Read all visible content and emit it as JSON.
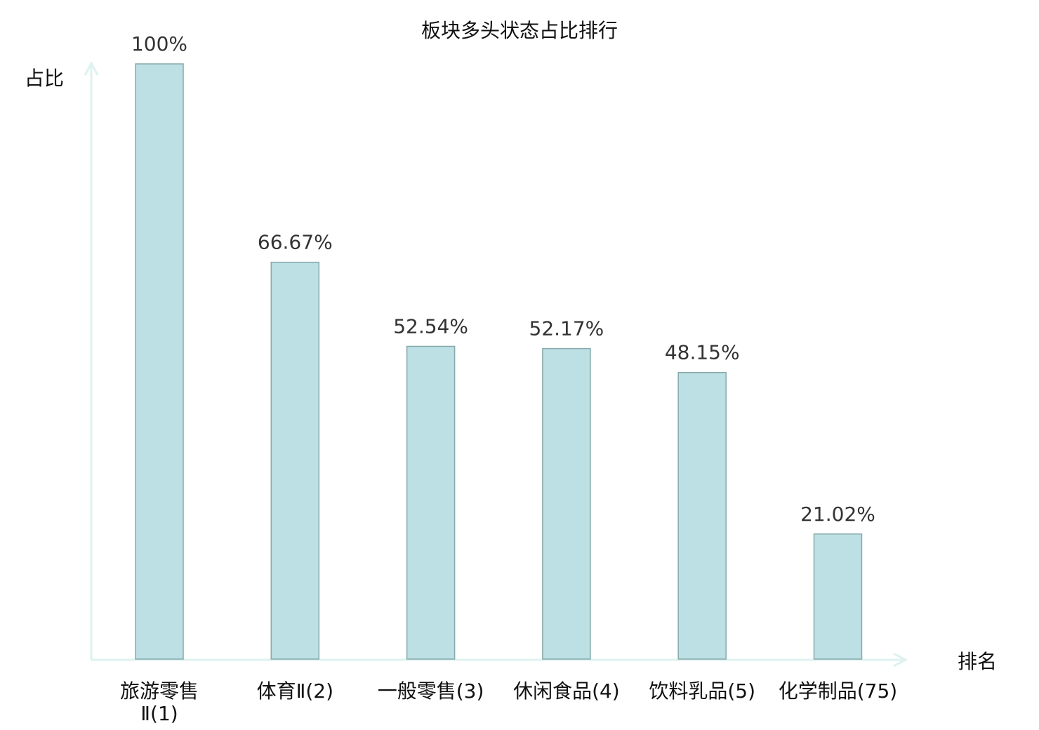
{
  "chart_data": {
    "type": "bar",
    "title": "板块多头状态占比排行",
    "xlabel": "排名",
    "ylabel": "占比",
    "categories": [
      "旅游零售Ⅱ(1)",
      "体育Ⅱ(2)",
      "一般零售(3)",
      "休闲食品(4)",
      "饮料乳品(5)",
      "化学制品(75)"
    ],
    "values": [
      100,
      66.67,
      52.54,
      52.17,
      48.15,
      21.02
    ],
    "value_labels": [
      "100%",
      "66.67%",
      "52.54%",
      "52.17%",
      "48.15%",
      "21.02%"
    ],
    "highlight_category": "化学制品(75)",
    "ylim": [
      0,
      100
    ],
    "grid": false,
    "legend": "none",
    "colors": {
      "bar_fill": "#bce0e3",
      "bar_stroke": "#86a9ab",
      "axis": "#def2ef",
      "highlight_label": "#e60000",
      "value_label": "#333333"
    }
  }
}
